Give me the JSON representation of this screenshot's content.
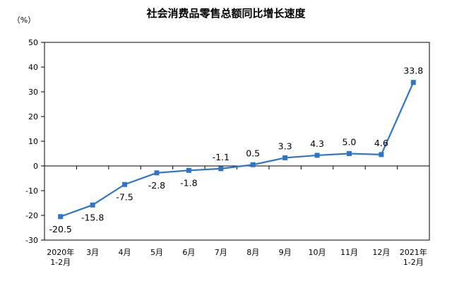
{
  "chart_data": {
    "type": "line",
    "title": "社会消费品零售总额同比增长速度",
    "ylabel": "（%）",
    "xlabel": "",
    "ylim": [
      -30,
      50
    ],
    "yticks": [
      "50",
      "40",
      "30",
      "20",
      "10",
      "0",
      "-10",
      "-20",
      "-30"
    ],
    "categories": [
      [
        "2020年",
        "1-2月"
      ],
      [
        "3月"
      ],
      [
        "4月"
      ],
      [
        "5月"
      ],
      [
        "6月"
      ],
      [
        "7月"
      ],
      [
        "8月"
      ],
      [
        "9月"
      ],
      [
        "10月"
      ],
      [
        "11月"
      ],
      [
        "12月"
      ],
      [
        "2021年",
        "1-2月"
      ]
    ],
    "values": [
      -20.5,
      -15.8,
      -7.5,
      -2.8,
      -1.8,
      -1.1,
      0.5,
      3.3,
      4.3,
      5.0,
      4.6,
      33.8
    ],
    "labels": [
      "-20.5",
      "-15.8",
      "-7.5",
      "-2.8",
      "-1.8",
      "-1.1",
      "0.5",
      "3.3",
      "4.3",
      "5.0",
      "4.6",
      "33.8"
    ],
    "color": "#2e75c8",
    "grid": false,
    "legend": "none"
  }
}
